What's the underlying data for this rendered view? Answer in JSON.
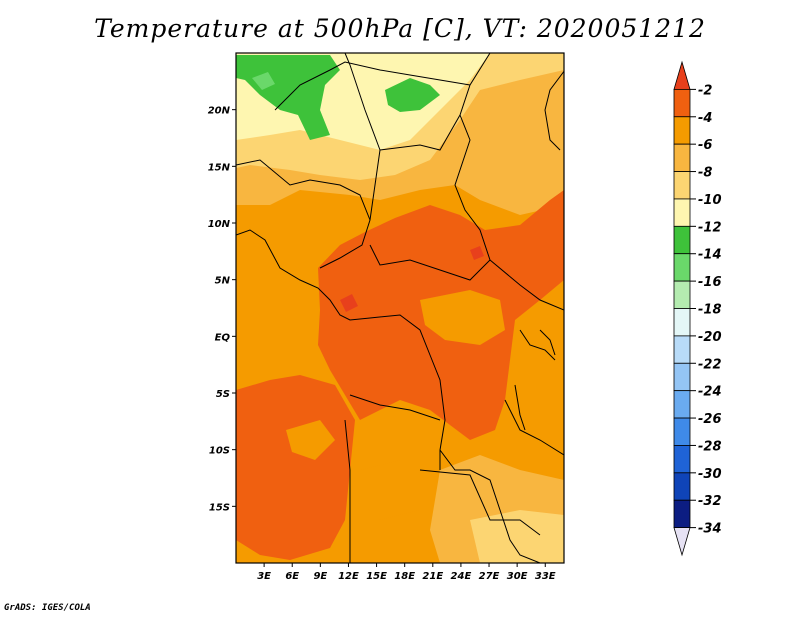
{
  "title": "Temperature at 500hPa [C], VT: 2020051212",
  "credit": "GrADS: IGES/COLA",
  "map": {
    "lon_range": [
      0,
      35
    ],
    "lat_range": [
      -20,
      25
    ],
    "lon_labels": [
      "3E",
      "6E",
      "9E",
      "12E",
      "15E",
      "18E",
      "21E",
      "24E",
      "27E",
      "30E",
      "33E"
    ],
    "lat_labels": [
      "20N",
      "15N",
      "10N",
      "5N",
      "EQ",
      "5S",
      "10S",
      "15S"
    ]
  },
  "colorbar": {
    "levels": [
      "-2",
      "-4",
      "-6",
      "-8",
      "-10",
      "-12",
      "-14",
      "-16",
      "-18",
      "-20",
      "-22",
      "-24",
      "-26",
      "-28",
      "-30",
      "-32",
      "-34"
    ],
    "colors": [
      "#e8401c",
      "#f06010",
      "#f59b00",
      "#f8b640",
      "#fcd572",
      "#fef6b0",
      "#3ec23a",
      "#6ad86a",
      "#b4ecb0",
      "#e4f7f7",
      "#b8dbf8",
      "#94c5f5",
      "#6aabf0",
      "#3f8ae8",
      "#1f63d6",
      "#0f44b8",
      "#0c1d82",
      "#e6e2f4"
    ]
  }
}
